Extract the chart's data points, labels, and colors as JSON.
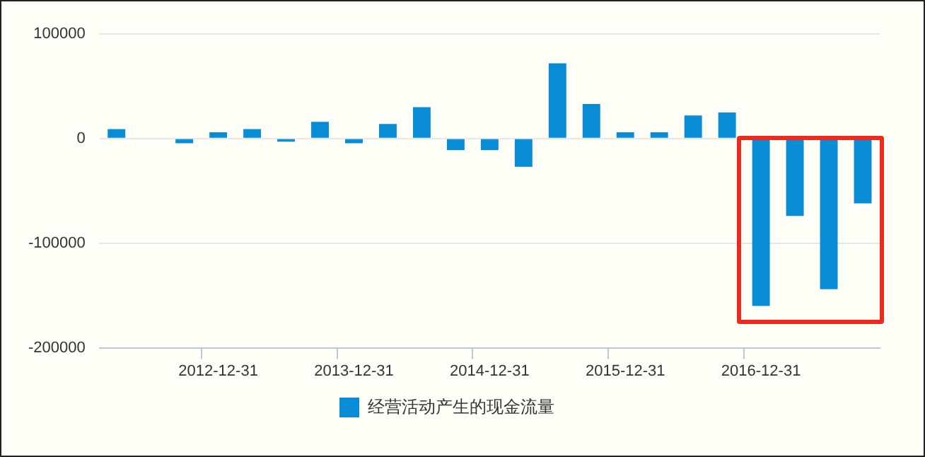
{
  "chart_data": {
    "type": "bar",
    "categories": [
      null,
      null,
      null,
      "2012-12-31",
      null,
      null,
      null,
      "2013-12-31",
      null,
      null,
      null,
      "2014-12-31",
      null,
      null,
      null,
      "2015-12-31",
      null,
      null,
      null,
      "2016-12-31",
      null,
      null,
      null
    ],
    "series": [
      {
        "name": "经营活动产生的现金流量",
        "color": "#088cd6",
        "values": [
          9000,
          null,
          -4500,
          6000,
          9000,
          -3000,
          16000,
          -4500,
          14000,
          30000,
          -11000,
          -11000,
          -27000,
          72000,
          33000,
          6000,
          6000,
          22000,
          25000,
          -160000,
          -74000,
          -144000,
          -62000
        ]
      }
    ],
    "ylim": [
      -200000,
      100000
    ],
    "yticks": [
      -200000,
      -100000,
      0,
      100000
    ],
    "grid": "y",
    "legend": "bottom"
  }
}
